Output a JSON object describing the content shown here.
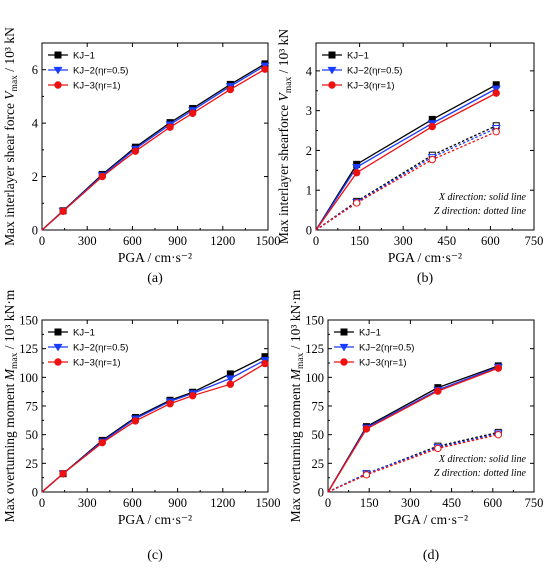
{
  "colors": {
    "kj1": "#000000",
    "kj2": "#1a3cff",
    "kj3": "#ee1111"
  },
  "chart_data": [
    {
      "type": "line",
      "panel_label": "(a)",
      "xlabel": "PGA / cm·s⁻²",
      "ylabel": "Max interlayer shear force Vₘₐₓ / 10³ kN",
      "xlim": [
        0,
        1500
      ],
      "ylim": [
        0,
        7
      ],
      "xticks": [
        "0",
        "300",
        "600",
        "900",
        "1200",
        "1500"
      ],
      "yticks": [
        "0",
        "2",
        "4",
        "6"
      ],
      "legend": "top-left",
      "series": [
        {
          "name": "KJ−1",
          "x": [
            0,
            140,
            400,
            620,
            850,
            1000,
            1250,
            1480
          ],
          "y": [
            0,
            0.72,
            2.08,
            3.1,
            4.02,
            4.55,
            5.45,
            6.22
          ]
        },
        {
          "name": "KJ−2(ηr=0.5)",
          "x": [
            0,
            140,
            400,
            620,
            850,
            1000,
            1250,
            1480
          ],
          "y": [
            0,
            0.71,
            2.04,
            3.04,
            3.95,
            4.48,
            5.38,
            6.15
          ]
        },
        {
          "name": "KJ−3(ηr=1)",
          "x": [
            0,
            140,
            400,
            620,
            850,
            1000,
            1250,
            1480
          ],
          "y": [
            0,
            0.7,
            2.0,
            2.95,
            3.85,
            4.37,
            5.26,
            6.02
          ]
        }
      ]
    },
    {
      "type": "line",
      "panel_label": "(b)",
      "xlabel": "PGA / cm·s⁻²",
      "ylabel": "Max interlayer shearforce Vₘₐₓ / 10³ kN",
      "xlim": [
        0,
        750
      ],
      "ylim": [
        0,
        4.7
      ],
      "xticks": [
        "0",
        "150",
        "300",
        "450",
        "600",
        "750"
      ],
      "yticks": [
        "0",
        "1",
        "2",
        "3",
        "4"
      ],
      "legend": "top-left",
      "annotations": [
        "X direction: solid line",
        "Z direction: dotted line"
      ],
      "series": [
        {
          "name": "KJ−1",
          "direction": "X",
          "x": [
            0,
            140,
            400,
            620
          ],
          "y": [
            0,
            1.65,
            2.78,
            3.65
          ]
        },
        {
          "name": "KJ−2(ηr=0.5)",
          "direction": "X",
          "x": [
            0,
            140,
            400,
            620
          ],
          "y": [
            0,
            1.58,
            2.68,
            3.55
          ]
        },
        {
          "name": "KJ−3(ηr=1)",
          "direction": "X",
          "x": [
            0,
            140,
            400,
            620
          ],
          "y": [
            0,
            1.44,
            2.6,
            3.44
          ]
        },
        {
          "name": "KJ−1",
          "direction": "Z",
          "x": [
            0,
            140,
            400,
            620
          ],
          "y": [
            0,
            0.72,
            1.88,
            2.62
          ]
        },
        {
          "name": "KJ−2(ηr=0.5)",
          "direction": "Z",
          "x": [
            0,
            140,
            400,
            620
          ],
          "y": [
            0,
            0.7,
            1.83,
            2.56
          ]
        },
        {
          "name": "KJ−3(ηr=1)",
          "direction": "Z",
          "x": [
            0,
            140,
            400,
            620
          ],
          "y": [
            0,
            0.68,
            1.77,
            2.47
          ]
        }
      ]
    },
    {
      "type": "line",
      "panel_label": "(c)",
      "xlabel": "PGA / cm·s⁻²",
      "ylabel": "Max overturning moment Mₘₐₓ / 10³ kN·m",
      "xlim": [
        0,
        1500
      ],
      "ylim": [
        0,
        150
      ],
      "xticks": [
        "0",
        "300",
        "600",
        "900",
        "1200",
        "1500"
      ],
      "yticks": [
        "0",
        "25",
        "50",
        "75",
        "100",
        "125",
        "150"
      ],
      "legend": "top-left",
      "series": [
        {
          "name": "KJ−1",
          "x": [
            0,
            140,
            400,
            620,
            850,
            1000,
            1250,
            1480
          ],
          "y": [
            0,
            16,
            45,
            65,
            80,
            87,
            103,
            118
          ]
        },
        {
          "name": "KJ−2(ηr=0.5)",
          "x": [
            0,
            140,
            400,
            620,
            850,
            1000,
            1250,
            1480
          ],
          "y": [
            0,
            16,
            44,
            64,
            79,
            86,
            99,
            115
          ]
        },
        {
          "name": "KJ−3(ηr=1)",
          "x": [
            0,
            140,
            400,
            620,
            850,
            1000,
            1250,
            1480
          ],
          "y": [
            0,
            16,
            43,
            62,
            77,
            84,
            94,
            112
          ]
        }
      ]
    },
    {
      "type": "line",
      "panel_label": "(d)",
      "xlabel": "PGA / cm·s⁻²",
      "ylabel": "Max overturning moment Mₘₐₓ / 10³ kN·m",
      "xlim": [
        0,
        750
      ],
      "ylim": [
        0,
        150
      ],
      "xticks": [
        "0",
        "150",
        "300",
        "450",
        "600",
        "750"
      ],
      "yticks": [
        "0",
        "25",
        "50",
        "75",
        "100",
        "125",
        "150"
      ],
      "legend": "top-left",
      "annotations": [
        "X direction: solid line",
        "Z direction: dotted line"
      ],
      "series": [
        {
          "name": "KJ−1",
          "direction": "X",
          "x": [
            0,
            140,
            400,
            620
          ],
          "y": [
            0,
            57,
            91,
            110
          ]
        },
        {
          "name": "KJ−2(ηr=0.5)",
          "direction": "X",
          "x": [
            0,
            140,
            400,
            620
          ],
          "y": [
            0,
            56,
            89,
            109
          ]
        },
        {
          "name": "KJ−3(ηr=1)",
          "direction": "X",
          "x": [
            0,
            140,
            400,
            620
          ],
          "y": [
            0,
            55,
            88,
            108
          ]
        },
        {
          "name": "KJ−1",
          "direction": "Z",
          "x": [
            0,
            140,
            400,
            620
          ],
          "y": [
            0,
            16,
            40,
            52
          ]
        },
        {
          "name": "KJ−2(ηr=0.5)",
          "direction": "Z",
          "x": [
            0,
            140,
            400,
            620
          ],
          "y": [
            0,
            16,
            39,
            51
          ]
        },
        {
          "name": "KJ−3(ηr=1)",
          "direction": "Z",
          "x": [
            0,
            140,
            400,
            620
          ],
          "y": [
            0,
            15,
            38,
            50
          ]
        }
      ]
    }
  ]
}
